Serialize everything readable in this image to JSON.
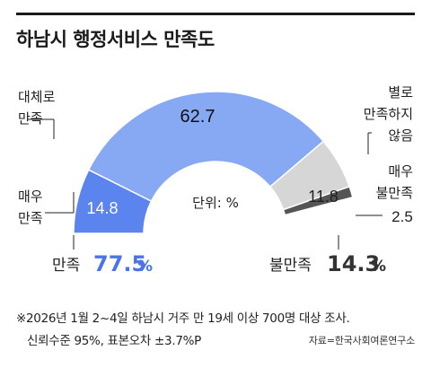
{
  "title": "하남시 행정서비스 만족도",
  "unit_label": "단위: %",
  "colors": {
    "very_satisfied": "#5b84ee",
    "satisfied": "#87a8f3",
    "not_satisfied": "#d6d6d6",
    "dissatisfied": "#9f9f9f",
    "very_dissatisfied": "#555555",
    "accent_blue": "#4a74e8",
    "accent_dark": "#333333"
  },
  "labels": {
    "satisfied_line1": "대체로",
    "satisfied_line2": "만족",
    "very_satisfied_line1": "매우",
    "very_satisfied_line2": "만족",
    "not_much_line1": "별로",
    "not_much_line2": "만족하지",
    "not_much_line3": "않음",
    "very_dissatisfied_line1": "매우",
    "very_dissatisfied_line2": "불만족"
  },
  "totals": {
    "satisfied_label": "만족",
    "satisfied_value": "77.5",
    "dissatisfied_label": "불만족",
    "dissatisfied_value": "14.3",
    "pct": "%"
  },
  "footnote": {
    "line1": "※2026년 1월 2~4일 하남시 거주 만 19세 이상 700명 대상 조사.",
    "line2": "신뢰수준 95%, 표본오차 ±3.7%P",
    "source": "자료=한국사회여론연구소"
  },
  "chart_data": {
    "type": "pie",
    "title": "하남시 행정서비스 만족도",
    "unit": "%",
    "categories": [
      "매우 만족",
      "대체로 만족",
      "별로 만족하지 않음",
      "매우 불만족"
    ],
    "values": [
      14.8,
      62.7,
      11.8,
      2.5
    ],
    "value_labels": [
      "14.8",
      "62.7",
      "11.8",
      "2.5"
    ],
    "totals": {
      "만족": 77.5,
      "불만족": 14.3
    }
  }
}
